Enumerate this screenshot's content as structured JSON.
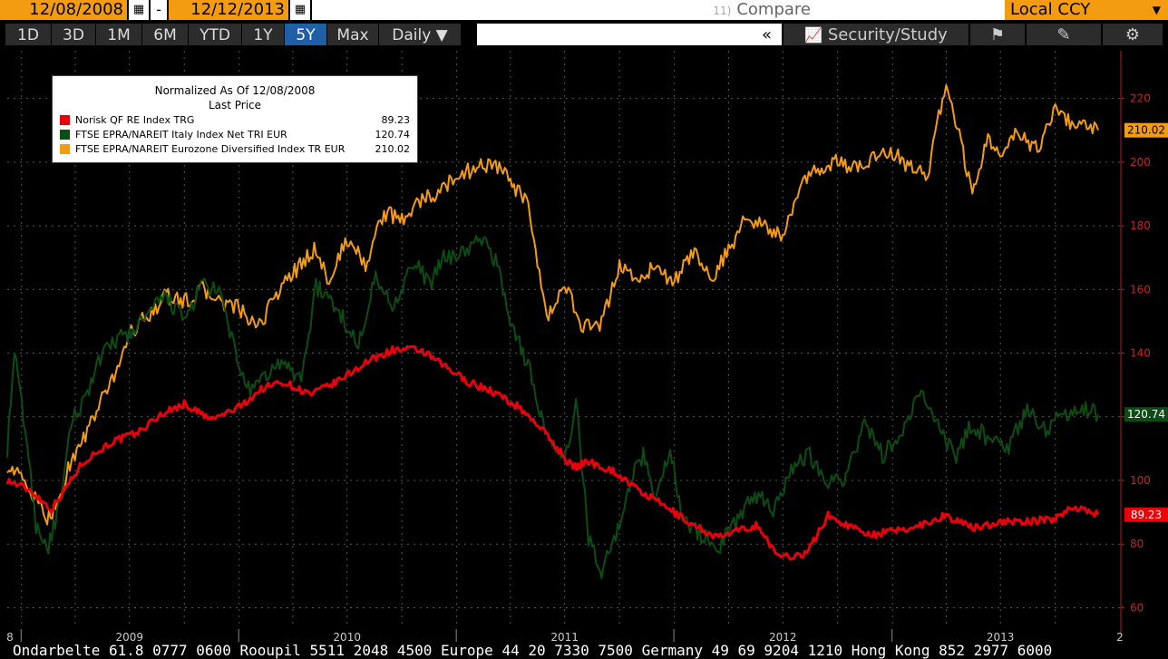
{
  "toolbar": {
    "start_date": "12/08/2008",
    "end_date": "12/12/2013",
    "date_separator": "-",
    "compare_num": "11)",
    "compare_label": "Compare",
    "currency": "Local CCY",
    "ranges": [
      "1D",
      "3D",
      "1M",
      "6M",
      "YTD",
      "1Y",
      "5Y",
      "Max"
    ],
    "active_range": "5Y",
    "frequency": "Daily",
    "collapse": "«",
    "security_study": "Security/Study"
  },
  "legend": {
    "title": "Normalized As Of 12/08/2008",
    "subtitle": "Last Price",
    "placement": "top-left"
  },
  "colors": {
    "background": "#000000",
    "grid": "#555555",
    "red": "#e8000b",
    "green": "#0b4d12",
    "orange": "#f39c12",
    "axis_text": "#cc2222"
  },
  "chart_data": {
    "type": "line",
    "title": "",
    "xlabel": "",
    "ylabel": "",
    "ylim": [
      55,
      235
    ],
    "yticks": [
      60,
      80,
      100,
      120,
      140,
      160,
      180,
      200,
      220
    ],
    "x_tick_labels": [
      "8",
      "2009",
      "2010",
      "2011",
      "2012",
      "2013",
      "2"
    ],
    "grid": true,
    "series": [
      {
        "name": "Norisk QF RE Index TRG",
        "last": "89.23",
        "color": "#e8000b",
        "x": [
          "2008-12-08",
          "2009-01-15",
          "2009-02-20",
          "2009-03-10",
          "2009-04-15",
          "2009-06-01",
          "2009-07-15",
          "2009-08-25",
          "2009-10-01",
          "2009-11-15",
          "2010-01-01",
          "2010-02-10",
          "2010-03-15",
          "2010-05-01",
          "2010-06-15",
          "2010-08-01",
          "2010-09-15",
          "2010-11-01",
          "2010-12-10",
          "2011-01-20",
          "2011-03-01",
          "2011-04-15",
          "2011-05-15",
          "2011-06-15",
          "2011-07-15",
          "2011-08-10",
          "2011-09-20",
          "2011-11-01",
          "2011-12-15",
          "2012-02-01",
          "2012-03-15",
          "2012-04-15",
          "2012-05-20",
          "2012-06-15",
          "2012-07-01",
          "2012-08-10",
          "2012-09-15",
          "2012-10-15",
          "2012-12-01",
          "2013-02-01",
          "2013-04-01",
          "2013-05-15",
          "2013-07-01",
          "2013-08-15",
          "2013-10-01",
          "2013-11-01",
          "2013-12-12"
        ],
        "values": [
          100,
          97,
          91,
          96,
          106,
          112,
          115,
          121,
          124,
          119,
          123,
          129,
          131,
          127,
          131,
          137,
          141,
          141,
          136,
          131,
          128,
          123,
          118,
          111,
          104,
          106,
          103,
          97,
          92,
          86,
          82,
          84,
          86,
          78,
          76,
          77,
          89,
          86,
          83,
          85,
          89,
          85,
          87,
          87,
          88,
          92,
          89.23
        ]
      },
      {
        "name": "FTSE EPRA/NAREIT Italy Index Net TRI EUR",
        "last": "120.74",
        "color": "#0b4d12",
        "x": [
          "2008-12-08",
          "2008-12-20",
          "2009-01-10",
          "2009-01-25",
          "2009-02-15",
          "2009-03-10",
          "2009-03-25",
          "2009-04-15",
          "2009-05-10",
          "2009-06-05",
          "2009-07-01",
          "2009-08-01",
          "2009-09-01",
          "2009-10-01",
          "2009-11-01",
          "2009-12-01",
          "2010-01-01",
          "2010-01-20",
          "2010-02-10",
          "2010-03-10",
          "2010-04-15",
          "2010-05-10",
          "2010-06-15",
          "2010-07-20",
          "2010-08-15",
          "2010-09-15",
          "2010-10-20",
          "2010-11-20",
          "2010-12-10",
          "2011-01-15",
          "2011-02-15",
          "2011-03-10",
          "2011-04-01",
          "2011-05-01",
          "2011-06-01",
          "2011-07-01",
          "2011-07-20",
          "2011-08-10",
          "2011-09-01",
          "2011-09-25",
          "2011-10-15",
          "2011-11-10",
          "2011-12-01",
          "2011-12-25",
          "2012-01-15",
          "2012-02-15",
          "2012-03-15",
          "2012-04-10",
          "2012-05-15",
          "2012-06-15",
          "2012-07-15",
          "2012-08-15",
          "2012-09-15",
          "2012-10-15",
          "2012-11-15",
          "2012-12-15",
          "2013-01-15",
          "2013-02-15",
          "2013-03-15",
          "2013-04-15",
          "2013-05-15",
          "2013-06-15",
          "2013-07-15",
          "2013-08-15",
          "2013-09-15",
          "2013-10-15",
          "2013-11-15",
          "2013-12-12"
        ],
        "values": [
          110,
          140,
          112,
          86,
          79,
          95,
          118,
          125,
          137,
          144,
          146,
          152,
          158,
          150,
          162,
          158,
          136,
          127,
          132,
          137,
          132,
          161,
          154,
          142,
          164,
          155,
          168,
          162,
          170,
          172,
          176,
          168,
          150,
          136,
          114,
          105,
          125,
          82,
          72,
          82,
          98,
          108,
          95,
          110,
          88,
          83,
          79,
          86,
          96,
          91,
          104,
          108,
          100,
          101,
          118,
          108,
          114,
          127,
          120,
          107,
          118,
          112,
          111,
          122,
          116,
          121,
          123,
          120.74
        ]
      },
      {
        "name": "FTSE EPRA/NAREIT Eurozone Diversified Index TR EUR",
        "last": "210.02",
        "color": "#f39c12",
        "x": [
          "2008-12-08",
          "2008-12-25",
          "2009-01-15",
          "2009-02-10",
          "2009-03-05",
          "2009-03-20",
          "2009-04-15",
          "2009-05-10",
          "2009-06-05",
          "2009-07-01",
          "2009-08-01",
          "2009-09-01",
          "2009-10-01",
          "2009-11-01",
          "2009-12-01",
          "2010-01-01",
          "2010-02-01",
          "2010-03-01",
          "2010-04-01",
          "2010-05-10",
          "2010-06-01",
          "2010-07-01",
          "2010-08-01",
          "2010-09-01",
          "2010-10-01",
          "2010-11-01",
          "2010-12-01",
          "2011-01-01",
          "2011-02-01",
          "2011-03-01",
          "2011-04-01",
          "2011-05-01",
          "2011-06-01",
          "2011-07-01",
          "2011-08-01",
          "2011-09-01",
          "2011-10-01",
          "2011-11-01",
          "2011-12-01",
          "2012-01-01",
          "2012-02-01",
          "2012-03-01",
          "2012-04-01",
          "2012-05-01",
          "2012-06-01",
          "2012-07-01",
          "2012-08-01",
          "2012-09-01",
          "2012-10-01",
          "2012-11-01",
          "2012-12-01",
          "2013-01-01",
          "2013-02-01",
          "2013-03-01",
          "2013-04-01",
          "2013-05-15",
          "2013-06-10",
          "2013-07-01",
          "2013-08-01",
          "2013-09-01",
          "2013-10-01",
          "2013-11-01",
          "2013-12-12"
        ],
        "values": [
          105,
          102,
          97,
          88,
          93,
          104,
          113,
          123,
          133,
          146,
          152,
          158,
          156,
          160,
          156,
          154,
          147,
          158,
          165,
          173,
          162,
          176,
          168,
          184,
          182,
          188,
          190,
          196,
          198,
          200,
          194,
          186,
          150,
          162,
          148,
          149,
          168,
          163,
          167,
          162,
          172,
          163,
          172,
          183,
          180,
          176,
          193,
          198,
          200,
          198,
          202,
          203,
          198,
          196,
          226,
          190,
          207,
          204,
          209,
          204,
          218,
          211,
          210.02
        ]
      }
    ]
  },
  "bottom_text": "Ondarbelte 61.8 0777 0600 Rooupil 5511 2048 4500 Europe 44 20 7330 7500 Germany 49 69 9204 1210 Hong Kong 852 2977 6000"
}
